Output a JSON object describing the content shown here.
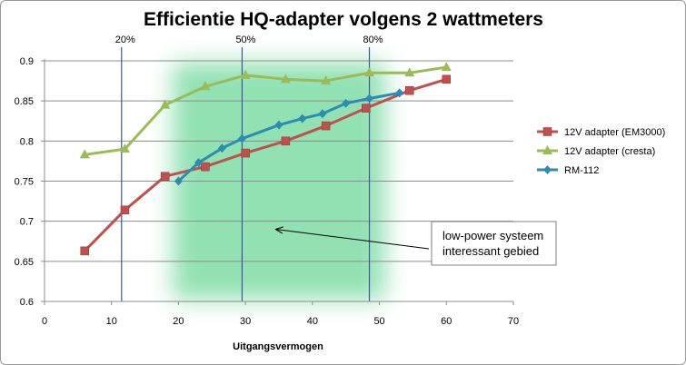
{
  "chart_data": {
    "type": "line",
    "title": "Efficientie HQ-adapter volgens 2 wattmeters",
    "xlabel": "Uitgangsvermogen",
    "ylabel": "",
    "xlim": [
      0,
      70
    ],
    "ylim": [
      0.6,
      0.9
    ],
    "x_ticks": [
      0,
      10,
      20,
      30,
      40,
      50,
      60,
      70
    ],
    "y_ticks": [
      0.6,
      0.65,
      0.7,
      0.75,
      0.8,
      0.85,
      0.9
    ],
    "y_tick_labels": [
      "0.6",
      "0.65",
      "0.7",
      "0.75",
      "0.8",
      "0.85",
      "0.9"
    ],
    "grid": "horizontal",
    "legend_position": "right",
    "shaded_region": {
      "x_from": 20,
      "x_to": 50,
      "color": "#7fdca6"
    },
    "vertical_markers": [
      {
        "x": 11.5,
        "label": "20%"
      },
      {
        "x": 29.5,
        "label": "50%"
      },
      {
        "x": 48.5,
        "label": "80%"
      }
    ],
    "series": [
      {
        "name": "12V adapter  (EM3000)",
        "color": "#c0504d",
        "marker": "square",
        "x": [
          6,
          12,
          18,
          24,
          30,
          36,
          42,
          48,
          54.5,
          60
        ],
        "y": [
          0.663,
          0.714,
          0.756,
          0.768,
          0.785,
          0.8,
          0.819,
          0.841,
          0.863,
          0.877
        ]
      },
      {
        "name": "12V adapter  (cresta)",
        "color": "#9bbb59",
        "marker": "triangle",
        "x": [
          6,
          12,
          18,
          24,
          30,
          36,
          42,
          48.5,
          54.5,
          60
        ],
        "y": [
          0.783,
          0.79,
          0.845,
          0.868,
          0.882,
          0.877,
          0.875,
          0.885,
          0.885,
          0.892
        ]
      },
      {
        "name": "RM-112",
        "color": "#2e8bb2",
        "marker": "diamond",
        "x": [
          20,
          23,
          26.5,
          29.5,
          35,
          38.5,
          41.5,
          45,
          48.5,
          53
        ],
        "y": [
          0.75,
          0.773,
          0.791,
          0.803,
          0.82,
          0.828,
          0.834,
          0.847,
          0.853,
          0.86
        ]
      }
    ],
    "annotations": [
      {
        "text_lines": [
          "low-power systeem",
          "interessant gebied"
        ],
        "arrow_to": {
          "x": 34.5,
          "y": 0.69
        }
      }
    ]
  }
}
